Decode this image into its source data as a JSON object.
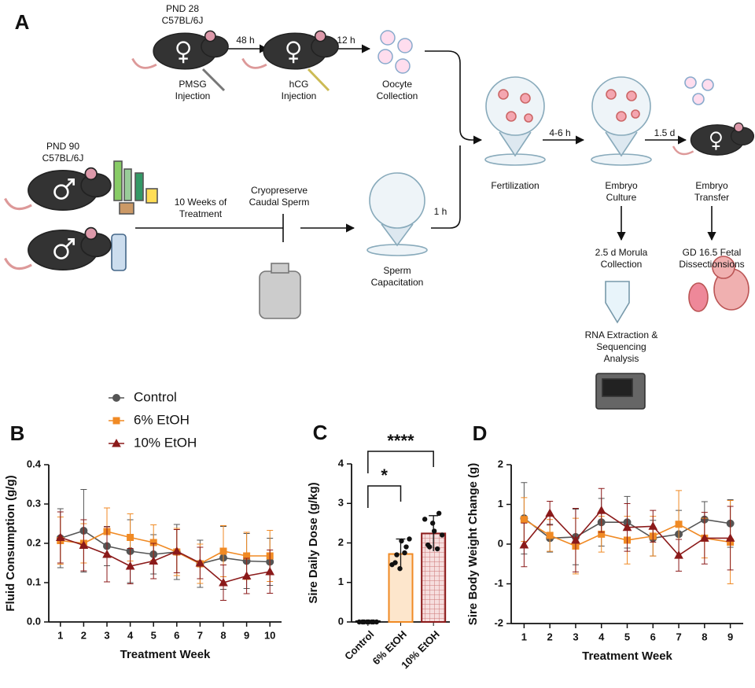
{
  "diagram": {
    "panel": "A",
    "labels": {
      "pnd28": [
        "PND 28",
        "C57BL/6J"
      ],
      "h48": "48 h",
      "h12": "12 h",
      "pmsg": [
        "PMSG",
        "Injection"
      ],
      "hcg": [
        "hCG",
        "Injection"
      ],
      "oocyte": [
        "Oocyte",
        "Collection"
      ],
      "pnd90": [
        "PND 90",
        "C57BL/6J"
      ],
      "treatment": [
        "10 Weeks of",
        "Treatment"
      ],
      "cryo": [
        "Cryopreserve",
        "Caudal Sperm"
      ],
      "h1": "1 h",
      "sperm": [
        "Sperm",
        "Capacitation"
      ],
      "fert": "Fertilization",
      "h46": "4-6 h",
      "culture": [
        "Embryo",
        "Culture"
      ],
      "d15": "1.5 d",
      "transfer": [
        "Embryo",
        "Transfer"
      ],
      "morula": [
        "2.5 d Morula",
        "Collection"
      ],
      "rna": [
        "RNA Extraction &",
        "Sequencing",
        "Analysis"
      ],
      "gd": [
        "GD 16.5 Fetal",
        "Dissectionsions"
      ]
    }
  },
  "chart_data": [
    {
      "type": "line",
      "panel": "B",
      "x_label": "Treatment Week",
      "y_label": "Fluid Consumption (g/g)",
      "x": [
        1,
        2,
        3,
        4,
        5,
        6,
        7,
        8,
        9,
        10
      ],
      "xlim": [
        0.5,
        10.5
      ],
      "xticks": [
        1,
        2,
        3,
        4,
        5,
        6,
        7,
        8,
        9,
        10
      ],
      "ylim": [
        0,
        0.4
      ],
      "yticks": [
        {
          "value": 0,
          "label": "0.0"
        },
        0.1,
        0.2,
        0.3,
        0.4
      ],
      "legend": "above-left",
      "series": [
        {
          "name": "Control",
          "color": "#555555",
          "marker": "circle",
          "values": [
            0.213,
            0.232,
            0.193,
            0.18,
            0.172,
            0.178,
            0.148,
            0.163,
            0.155,
            0.153
          ],
          "errors": [
            0.075,
            0.105,
            0.05,
            0.08,
            0.05,
            0.07,
            0.06,
            0.08,
            0.07,
            0.06
          ]
        },
        {
          "name": "6% EtOH",
          "color": "#f08a24",
          "marker": "square",
          "values": [
            0.207,
            0.2,
            0.23,
            0.215,
            0.202,
            0.178,
            0.148,
            0.18,
            0.168,
            0.168
          ],
          "errors": [
            0.06,
            0.05,
            0.06,
            0.06,
            0.045,
            0.06,
            0.05,
            0.065,
            0.06,
            0.065
          ]
        },
        {
          "name": "10% EtOH",
          "color": "#8b1a1a",
          "marker": "triangle",
          "values": [
            0.215,
            0.195,
            0.172,
            0.142,
            0.155,
            0.18,
            0.15,
            0.1,
            0.117,
            0.128
          ],
          "errors": [
            0.065,
            0.065,
            0.07,
            0.045,
            0.045,
            0.055,
            0.04,
            0.045,
            0.045,
            0.055
          ]
        }
      ]
    },
    {
      "type": "bar",
      "panel": "C",
      "y_label": "Sire Daily Dose (g/kg)",
      "categories": [
        "Control",
        "6% EtOH",
        "10% EtOH"
      ],
      "values": [
        0.02,
        1.72,
        2.24
      ],
      "errors": [
        0.02,
        0.38,
        0.45
      ],
      "colors": [
        "#111111",
        "#f08a24",
        "#8b1a1a"
      ],
      "points": [
        [
          0,
          0,
          0,
          0,
          0,
          0,
          0,
          0
        ],
        [
          1.45,
          1.7,
          2.05,
          1.9,
          1.5,
          1.35,
          1.75,
          2.1
        ],
        [
          2.6,
          1.9,
          2.3,
          2.75,
          1.95,
          2.5,
          1.85,
          2.2
        ]
      ],
      "ylim": [
        0,
        4
      ],
      "yticks": [
        0,
        1,
        2,
        3,
        4
      ],
      "annotations": [
        {
          "label": "*",
          "categories": [
            "Control",
            "6% EtOH"
          ]
        },
        {
          "label": "****",
          "categories": [
            "Control",
            "10% EtOH"
          ]
        }
      ]
    },
    {
      "type": "line",
      "panel": "D",
      "x_label": "Treatment Week",
      "y_label": "Sire Body Weight Change (g)",
      "x": [
        1,
        2,
        3,
        4,
        5,
        6,
        7,
        8,
        9
      ],
      "xlim": [
        0.5,
        9.5
      ],
      "xticks": [
        1,
        2,
        3,
        4,
        5,
        6,
        7,
        8,
        9
      ],
      "ylim": [
        -2,
        2
      ],
      "yticks": [
        -2,
        -1,
        0,
        1,
        2
      ],
      "series": [
        {
          "name": "Control",
          "color": "#555555",
          "marker": "circle",
          "values": [
            0.65,
            0.15,
            0.18,
            0.55,
            0.55,
            0.15,
            0.25,
            0.62,
            0.52
          ],
          "errors": [
            0.9,
            0.35,
            0.7,
            0.6,
            0.65,
            0.45,
            0.6,
            0.45,
            0.6
          ]
        },
        {
          "name": "6% EtOH",
          "color": "#f08a24",
          "marker": "square",
          "values": [
            0.62,
            0.22,
            -0.05,
            0.25,
            0.1,
            0.2,
            0.5,
            0.15,
            0.05
          ],
          "errors": [
            0.55,
            0.4,
            0.7,
            0.45,
            0.6,
            0.5,
            0.85,
            0.5,
            1.05
          ]
        },
        {
          "name": "10% EtOH",
          "color": "#8b1a1a",
          "marker": "triangle",
          "values": [
            -0.02,
            0.78,
            0.1,
            0.85,
            0.42,
            0.45,
            -0.28,
            0.15,
            0.15
          ],
          "errors": [
            0.55,
            0.3,
            0.8,
            0.55,
            0.6,
            0.4,
            0.4,
            0.65,
            0.8
          ]
        }
      ]
    }
  ]
}
